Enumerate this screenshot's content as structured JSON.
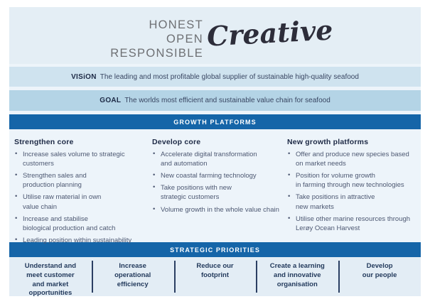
{
  "header": {
    "values": [
      "HONEST",
      "OPEN",
      "RESPONSIBLE"
    ],
    "script_word": "Creative"
  },
  "vision": {
    "label": "VISiON",
    "text": "The leading and most profitable global supplier of sustainable high-quality seafood"
  },
  "goal": {
    "label": "GOAL",
    "text": "The worlds most efficient and sustainable value chain for seafood"
  },
  "growth": {
    "band_label": "GROWTH PLATFORMS",
    "columns": [
      {
        "title": "Strengthen core",
        "bullets": [
          "Increase sales volume to strategic\ncustomers",
          "Strengthen sales and\nproduction planning",
          "Utilise raw material in own\nvalue chain",
          "Increase and stabilise\nbiological production and catch",
          "Leading position within sustainability"
        ]
      },
      {
        "title": "Develop core",
        "bullets": [
          "Accelerate digital transformation\nand automation",
          "New coastal farming technology",
          "Take positions with new\nstrategic customers",
          "Volume growth in the whole value chain"
        ]
      },
      {
        "title": "New growth platforms",
        "bullets": [
          "Offer and produce new species based\non market needs",
          "Position for volume growth\nin farming through new technologies",
          "Take positions in attractive\nnew markets",
          "Utilise other marine resources through\nLerøy Ocean Harvest"
        ]
      }
    ]
  },
  "priorities": {
    "band_label": "STRATEGIC PRIORITIES",
    "items": [
      "Understand and\nmeet customer\nand market\nopportunities",
      "Increase\noperational\nefficiency",
      "Reduce our\nfootprint",
      "Create a learning\nand innovative\norganisation",
      "Develop\nour people"
    ]
  },
  "colors": {
    "band_dark_blue": "#1565a8",
    "header_band": "#e4eef5",
    "vision_band": "#cfe3ef",
    "goal_band": "#b4d4e6",
    "content_background": "#edf4fa",
    "bottom_band": "#e3edf5",
    "heading_navy": "#1d2945",
    "body_slate": "#4d5872",
    "values_gray": "#6e7074"
  }
}
